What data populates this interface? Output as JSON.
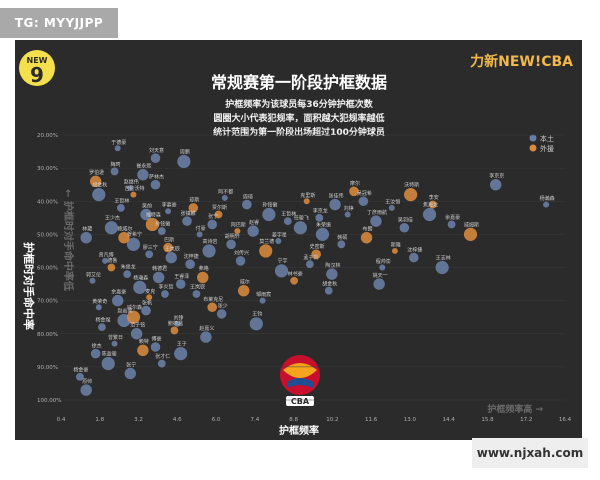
{
  "tag_label": "TG: MYYJJPP",
  "watermark_text": "www.njxah.com",
  "logo_left_text": "NEW",
  "logo_left_digit": "9",
  "brand_right_text": "力新NEW!CBA",
  "colors": {
    "panel_bg": "#2b2b2b",
    "local": "#6b7fa6",
    "foreign": "#d98a3f",
    "title": "#ffffff",
    "subtitle": "#f2f2f2",
    "tick": "#b0b0b0",
    "label": "#cfcfcf",
    "gridline": "#3a3a3a"
  },
  "chart_data": {
    "type": "scatter",
    "title": "常规赛第一阶段护框数据",
    "subtitle_lines": [
      "护框频率为该球员每36分钟护框次数",
      "圆圈大小代表犯规率，面积越大犯规率越低",
      "统计范围为第一阶段出场超过100分钟球员"
    ],
    "xlabel": "护框频率",
    "ylabel": "护框时对手命中率",
    "y_annotation": "← 护框时对手命中率低",
    "x_annotation": "护框频率高 →",
    "xlim": [
      0.4,
      16.4
    ],
    "ylim": [
      20,
      100
    ],
    "y_inverted": true,
    "x_ticks": [
      "0.4",
      "1.8",
      "3.2",
      "4.6",
      "6.0",
      "7.4",
      "8.8",
      "10.2",
      "11.6",
      "13.0",
      "14.4",
      "15.8",
      "17.2",
      "16.4"
    ],
    "y_ticks": [
      "20.00%",
      "30.00%",
      "40.00%",
      "50.00%",
      "60.00%",
      "70.00%",
      "80.00%",
      "90.00%",
      "100.00%"
    ],
    "legend": [
      "本土",
      "外援"
    ],
    "legend_position": "top-right",
    "series": [
      {
        "name": "本土",
        "points": [
          [
            2.2,
            24,
            "于德豪"
          ],
          [
            3.4,
            27,
            "刘天意"
          ],
          [
            4.3,
            28,
            "周鹏"
          ],
          [
            2.1,
            31,
            "梅珂"
          ],
          [
            3.0,
            32,
            "崔永熙"
          ],
          [
            2.6,
            36,
            "赵继伟"
          ],
          [
            3.4,
            35,
            "萨林杰"
          ],
          [
            1.6,
            38,
            "胡金秋"
          ],
          [
            2.3,
            42,
            "王哲林"
          ],
          [
            3.1,
            44,
            "吴前"
          ],
          [
            3.8,
            43,
            "李慕豪"
          ],
          [
            4.4,
            46,
            "张镇麟"
          ],
          [
            2.0,
            48,
            "王少杰"
          ],
          [
            3.6,
            49,
            "孙铭徽"
          ],
          [
            1.2,
            51,
            "林葳"
          ],
          [
            4.8,
            50,
            "付豪"
          ],
          [
            5.2,
            47,
            "张宁"
          ],
          [
            2.7,
            53,
            "贺希宁"
          ],
          [
            3.2,
            56,
            "廖三宁"
          ],
          [
            3.9,
            57,
            "王岚嵚"
          ],
          [
            1.8,
            58,
            "曾凡博"
          ],
          [
            4.5,
            59,
            "沈梓捷"
          ],
          [
            5.1,
            55,
            "高诗岩"
          ],
          [
            2.5,
            62,
            "朱俊龙"
          ],
          [
            3.5,
            63,
            "韩德君"
          ],
          [
            1.4,
            64,
            "郭艾伦"
          ],
          [
            4.2,
            65,
            "王睿泽"
          ],
          [
            2.9,
            66,
            "杨瀚森"
          ],
          [
            3.7,
            68,
            "李炎哲"
          ],
          [
            2.2,
            70,
            "余嘉豪"
          ],
          [
            1.6,
            72,
            "黄荣奇"
          ],
          [
            3.1,
            73,
            "张帆"
          ],
          [
            2.4,
            76,
            "赵岩昊"
          ],
          [
            1.7,
            78,
            "杨金煜"
          ],
          [
            2.8,
            80,
            "范子铭"
          ],
          [
            2.1,
            83,
            "曾繁日"
          ],
          [
            1.5,
            86,
            "徐杰"
          ],
          [
            1.9,
            89,
            "陈盈骏"
          ],
          [
            1.0,
            93,
            "杨金豪"
          ],
          [
            1.2,
            97,
            "原帅"
          ],
          [
            5.6,
            39,
            "阿不都"
          ],
          [
            6.3,
            41,
            "周琦"
          ],
          [
            7.0,
            44,
            "孙铭徽"
          ],
          [
            7.6,
            46,
            "王哲林"
          ],
          [
            6.5,
            49,
            "赵睿"
          ],
          [
            7.3,
            52,
            "姜宇星"
          ],
          [
            5.8,
            53,
            "胡明轩"
          ],
          [
            8.0,
            48,
            "任骏飞"
          ],
          [
            8.6,
            45,
            "李京龙"
          ],
          [
            9.1,
            41,
            "张佳伟"
          ],
          [
            9.5,
            44,
            "刘铮"
          ],
          [
            10.0,
            40,
            "吴冠希"
          ],
          [
            8.7,
            50,
            "朱荣振"
          ],
          [
            9.3,
            53,
            "韩硕"
          ],
          [
            10.4,
            46,
            "丁彦雨航"
          ],
          [
            10.9,
            42,
            "王汝恒"
          ],
          [
            11.3,
            48,
            "吴羽佳"
          ],
          [
            12.1,
            44,
            "焦海龙"
          ],
          [
            12.8,
            47,
            "余嘉豪"
          ],
          [
            14.2,
            35,
            "李京京"
          ],
          [
            15.8,
            41,
            "杨瀚森"
          ],
          [
            6.1,
            58,
            "刘传兴"
          ],
          [
            7.4,
            61,
            "宁宇"
          ],
          [
            8.3,
            59,
            "孟子凯"
          ],
          [
            9.0,
            62,
            "陶汉林"
          ],
          [
            10.6,
            60,
            "程帅澎"
          ],
          [
            11.6,
            57,
            "沈梓捷"
          ],
          [
            12.5,
            60,
            "王志林"
          ],
          [
            8.9,
            67,
            "胡金秋"
          ],
          [
            10.5,
            65,
            "姚天一"
          ],
          [
            6.8,
            70,
            "邹雨宸"
          ],
          [
            5.5,
            74,
            "张少"
          ],
          [
            6.6,
            77,
            "王钧"
          ],
          [
            4.7,
            68,
            "王岚嵚"
          ],
          [
            5.0,
            81,
            "赵嘉义"
          ],
          [
            4.1,
            77,
            "刘铮"
          ],
          [
            3.4,
            84,
            "傅豪"
          ],
          [
            4.2,
            86,
            "王子"
          ],
          [
            3.6,
            89,
            "张才仁"
          ],
          [
            2.6,
            92,
            "张宁"
          ]
        ]
      },
      {
        "name": "外援",
        "points": [
          [
            1.5,
            34,
            "罗伯逊"
          ],
          [
            2.7,
            38,
            "吉伦沃特"
          ],
          [
            4.6,
            42,
            "琼斯"
          ],
          [
            3.3,
            47,
            "福特森"
          ],
          [
            5.4,
            44,
            "贾尔斯"
          ],
          [
            2.4,
            51,
            "鲍威尔"
          ],
          [
            6.0,
            49,
            "阿巴斯"
          ],
          [
            3.8,
            54,
            "巴斯"
          ],
          [
            6.9,
            55,
            "莫兰德"
          ],
          [
            2.0,
            60,
            "德鲁"
          ],
          [
            4.9,
            63,
            "弗格"
          ],
          [
            3.2,
            69,
            "麦克"
          ],
          [
            5.2,
            72,
            "布莱克尼"
          ],
          [
            2.7,
            75,
            "威尔森"
          ],
          [
            4.0,
            79,
            "鲍德温"
          ],
          [
            3.0,
            85,
            "赖特"
          ],
          [
            8.2,
            40,
            "克里斯"
          ],
          [
            9.7,
            37,
            "摩尔"
          ],
          [
            11.5,
            38,
            "沃特斯"
          ],
          [
            12.2,
            41,
            "李安"
          ],
          [
            10.1,
            51,
            "布朗"
          ],
          [
            11.0,
            55,
            "斯隆"
          ],
          [
            8.5,
            56,
            "史密斯"
          ],
          [
            13.4,
            50,
            "威姆斯"
          ],
          [
            7.8,
            64,
            "林书豪"
          ],
          [
            6.2,
            67,
            "威尔"
          ]
        ]
      }
    ]
  }
}
